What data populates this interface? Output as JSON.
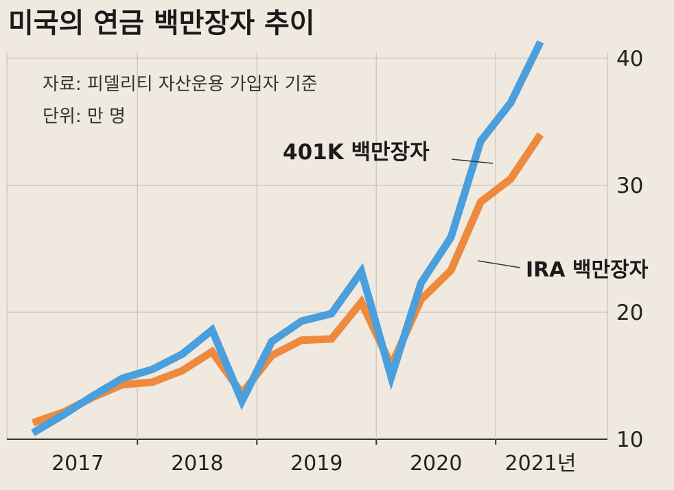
{
  "chart_data": {
    "type": "line",
    "title": "미국의 연금 백만장자 추이",
    "source_note": "자료: 피델리티 자산운용 가입자 기준",
    "unit_note": "단위: 만 명",
    "x_tick_labels": [
      "2017",
      "2018",
      "2019",
      "2020",
      "2021년"
    ],
    "y_ticks": [
      10,
      20,
      30,
      40
    ],
    "ylim": [
      10,
      43
    ],
    "grid": true,
    "quarters": [
      "2017Q1",
      "2017Q2",
      "2017Q3",
      "2017Q4",
      "2018Q1",
      "2018Q2",
      "2018Q3",
      "2018Q4",
      "2019Q1",
      "2019Q2",
      "2019Q3",
      "2019Q4",
      "2020Q1",
      "2020Q2",
      "2020Q3",
      "2020Q4",
      "2021Q1",
      "2021Q2",
      "2021Q3"
    ],
    "series": [
      {
        "name": "401K 백만장자",
        "color": "#4a9fdc",
        "values": [
          10.5,
          11.9,
          13.4,
          14.8,
          15.5,
          16.7,
          18.6,
          13.0,
          17.7,
          19.3,
          19.9,
          23.2,
          14.9,
          22.3,
          25.9,
          33.5,
          36.5,
          41.3,
          null
        ]
      },
      {
        "name": "IRA 백만장자",
        "color": "#ee8a3e",
        "values": [
          11.3,
          12.1,
          13.3,
          14.3,
          14.5,
          15.4,
          16.9,
          13.6,
          16.6,
          17.8,
          17.9,
          20.8,
          15.8,
          21.0,
          23.3,
          28.7,
          30.5,
          34.0,
          null
        ]
      }
    ]
  }
}
